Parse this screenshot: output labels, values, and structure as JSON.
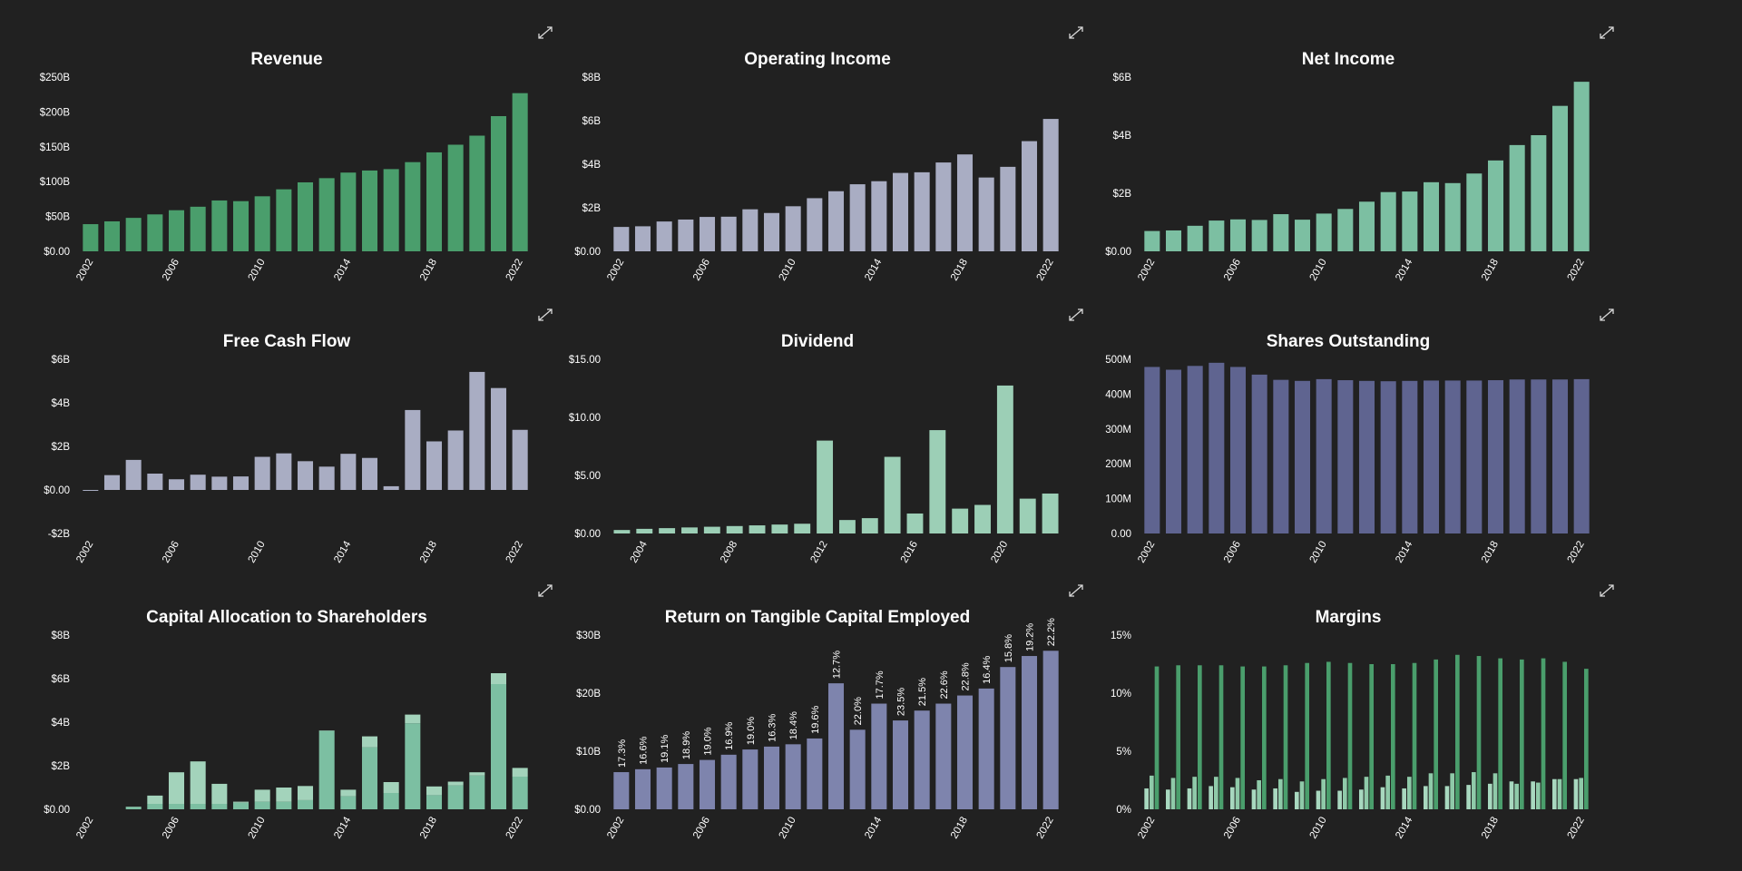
{
  "icons": {
    "expand": "expand-arrows-icon"
  },
  "colors": {
    "background": "#212121",
    "green": "#4a9e6c",
    "lavender": "#a9adc3",
    "mint": "#7cbfa2",
    "paleMint": "#9ccfb6",
    "slate": "#5f6490",
    "periwinkle": "#7e84ad",
    "capBase": "#7cbfa2",
    "capTop": "#a3d3bb",
    "marginGross": "#a8d8bf",
    "marginOp": "#8fcaa9",
    "marginNet": "#4a9e6c"
  },
  "charts": [
    {
      "id": "revenue",
      "chart_data": {
        "type": "bar",
        "title": "Revenue",
        "color": "#4a9e6c",
        "x": [
          2002,
          2003,
          2004,
          2005,
          2006,
          2007,
          2008,
          2009,
          2010,
          2011,
          2012,
          2013,
          2014,
          2015,
          2016,
          2017,
          2018,
          2019,
          2020,
          2021,
          2022
        ],
        "values": [
          39,
          43,
          48,
          53,
          59,
          64,
          73,
          72,
          79,
          89,
          99,
          105,
          113,
          116,
          118,
          128,
          142,
          153,
          166,
          194,
          227
        ],
        "unit": "B",
        "ylim": [
          0,
          250
        ],
        "yticks": [
          0,
          50,
          100,
          150,
          200,
          250
        ],
        "ytick_labels": [
          "$0.00",
          "$50B",
          "$100B",
          "$150B",
          "$200B",
          "$250B"
        ],
        "xtick_labels": [
          "2002",
          "2006",
          "2010",
          "2014",
          "2018",
          "2022"
        ]
      }
    },
    {
      "id": "operating-income",
      "chart_data": {
        "type": "bar",
        "title": "Operating Income",
        "color": "#a9adc3",
        "x": [
          2002,
          2003,
          2004,
          2005,
          2006,
          2007,
          2008,
          2009,
          2010,
          2011,
          2012,
          2013,
          2014,
          2015,
          2016,
          2017,
          2018,
          2019,
          2020,
          2021,
          2022
        ],
        "values": [
          1.12,
          1.15,
          1.37,
          1.46,
          1.58,
          1.59,
          1.93,
          1.76,
          2.07,
          2.44,
          2.76,
          3.08,
          3.22,
          3.6,
          3.63,
          4.08,
          4.45,
          3.39,
          3.88,
          5.06,
          6.08
        ],
        "unit": "B",
        "ylim": [
          0,
          8
        ],
        "yticks": [
          0,
          2,
          4,
          6,
          8
        ],
        "ytick_labels": [
          "$0.00",
          "$2B",
          "$4B",
          "$6B",
          "$8B"
        ],
        "xtick_labels": [
          "2002",
          "2006",
          "2010",
          "2014",
          "2018",
          "2022"
        ]
      }
    },
    {
      "id": "net-income",
      "chart_data": {
        "type": "bar",
        "title": "Net Income",
        "color": "#7cbfa2",
        "x": [
          2002,
          2003,
          2004,
          2005,
          2006,
          2007,
          2008,
          2009,
          2010,
          2011,
          2012,
          2013,
          2014,
          2015,
          2016,
          2017,
          2018,
          2019,
          2020,
          2021,
          2022
        ],
        "values": [
          0.7,
          0.72,
          0.88,
          1.06,
          1.1,
          1.08,
          1.28,
          1.09,
          1.3,
          1.46,
          1.71,
          2.04,
          2.06,
          2.38,
          2.35,
          2.68,
          3.13,
          3.66,
          4.0,
          5.01,
          5.84
        ],
        "unit": "B",
        "ylim": [
          0,
          6
        ],
        "yticks": [
          0,
          2,
          4,
          6
        ],
        "ytick_labels": [
          "$0.00",
          "$2B",
          "$4B",
          "$6B"
        ],
        "xtick_labels": [
          "2002",
          "2006",
          "2010",
          "2014",
          "2018",
          "2022"
        ]
      }
    },
    {
      "id": "free-cash-flow",
      "chart_data": {
        "type": "bar",
        "title": "Free Cash Flow",
        "color": "#a9adc3",
        "x": [
          2002,
          2003,
          2004,
          2005,
          2006,
          2007,
          2008,
          2009,
          2010,
          2011,
          2012,
          2013,
          2014,
          2015,
          2016,
          2017,
          2018,
          2019,
          2020,
          2021,
          2022
        ],
        "values": [
          -0.03,
          0.68,
          1.38,
          0.75,
          0.49,
          0.7,
          0.61,
          0.62,
          1.52,
          1.68,
          1.32,
          1.07,
          1.66,
          1.47,
          0.17,
          3.67,
          2.23,
          2.73,
          5.42,
          4.68,
          2.76
        ],
        "unit": "B",
        "ylim": [
          -2,
          6
        ],
        "yticks": [
          -2,
          0,
          2,
          4,
          6
        ],
        "ytick_labels": [
          "-$2B",
          "$0.00",
          "$2B",
          "$4B",
          "$6B"
        ],
        "xtick_labels": [
          "2002",
          "2006",
          "2010",
          "2014",
          "2018",
          "2022"
        ]
      }
    },
    {
      "id": "dividend",
      "chart_data": {
        "type": "bar",
        "title": "Dividend",
        "color": "#9ccfb6",
        "x": [
          2003,
          2004,
          2005,
          2006,
          2007,
          2008,
          2009,
          2010,
          2011,
          2012,
          2013,
          2014,
          2015,
          2016,
          2017,
          2018,
          2019,
          2020,
          2021,
          2022
        ],
        "values": [
          0.3,
          0.4,
          0.46,
          0.52,
          0.58,
          0.64,
          0.7,
          0.77,
          0.84,
          8.0,
          1.16,
          1.32,
          6.6,
          1.72,
          8.9,
          2.14,
          2.46,
          12.74,
          3.0,
          3.44
        ],
        "ylim": [
          0,
          15
        ],
        "yticks": [
          0,
          5,
          10,
          15
        ],
        "ytick_labels": [
          "$0.00",
          "$5.00",
          "$10.00",
          "$15.00"
        ],
        "xtick_labels": [
          "2004",
          "2008",
          "2012",
          "2016",
          "2020"
        ]
      }
    },
    {
      "id": "shares-outstanding",
      "chart_data": {
        "type": "bar",
        "title": "Shares Outstanding",
        "color": "#5f6490",
        "x": [
          2002,
          2003,
          2004,
          2005,
          2006,
          2007,
          2008,
          2009,
          2010,
          2011,
          2012,
          2013,
          2014,
          2015,
          2016,
          2017,
          2018,
          2019,
          2020,
          2021,
          2022
        ],
        "values": [
          478,
          470,
          481,
          490,
          478,
          456,
          441,
          438,
          443,
          440,
          438,
          437,
          438,
          439,
          439,
          439,
          440,
          442,
          442,
          442,
          443
        ],
        "unit": "M",
        "ylim": [
          0,
          500
        ],
        "yticks": [
          0,
          100,
          200,
          300,
          400,
          500
        ],
        "ytick_labels": [
          "0.00",
          "100M",
          "200M",
          "300M",
          "400M",
          "500M"
        ],
        "xtick_labels": [
          "2002",
          "2006",
          "2010",
          "2014",
          "2018",
          "2022"
        ]
      }
    },
    {
      "id": "capital-allocation",
      "chart_data": {
        "type": "stacked_bar",
        "title": "Capital Allocation to Shareholders",
        "x": [
          2002,
          2003,
          2004,
          2005,
          2006,
          2007,
          2008,
          2009,
          2010,
          2011,
          2012,
          2013,
          2014,
          2015,
          2016,
          2017,
          2018,
          2019,
          2020,
          2021,
          2022
        ],
        "series": [
          {
            "color": "#7cbfa2",
            "values": [
              0,
              0,
              0.1,
              0.25,
              0.25,
              0.25,
              0.25,
              0.3,
              0.35,
              0.35,
              0.42,
              3.6,
              0.6,
              2.85,
              0.75,
              3.95,
              0.65,
              1.1,
              1.55,
              5.75,
              1.5
            ]
          },
          {
            "color": "#a3d3bb",
            "values": [
              0,
              0,
              0.02,
              0.38,
              1.45,
              1.95,
              0.92,
              0.05,
              0.55,
              0.65,
              0.65,
              0.02,
              0.3,
              0.5,
              0.5,
              0.4,
              0.4,
              0.17,
              0.15,
              0.5,
              0.4
            ]
          }
        ],
        "unit": "B",
        "ylim": [
          0,
          8
        ],
        "yticks": [
          0,
          2,
          4,
          6,
          8
        ],
        "ytick_labels": [
          "$0.00",
          "$2B",
          "$4B",
          "$6B",
          "$8B"
        ],
        "xtick_labels": [
          "2002",
          "2006",
          "2010",
          "2014",
          "2018",
          "2022"
        ]
      }
    },
    {
      "id": "rotce",
      "chart_data": {
        "type": "bar",
        "title": "Return on Tangible Capital Employed",
        "color": "#7e84ad",
        "x": [
          2002,
          2003,
          2004,
          2005,
          2006,
          2007,
          2008,
          2009,
          2010,
          2011,
          2012,
          2013,
          2014,
          2015,
          2016,
          2017,
          2018,
          2019,
          2020,
          2021,
          2022
        ],
        "values": [
          6.4,
          6.9,
          7.2,
          7.8,
          8.5,
          9.4,
          10.3,
          10.8,
          11.2,
          12.2,
          21.7,
          13.7,
          18.2,
          15.3,
          17.0,
          18.2,
          19.6,
          20.8,
          24.5,
          26.4,
          27.3
        ],
        "data_labels": [
          "17.3%",
          "16.6%",
          "19.1%",
          "18.9%",
          "19.0%",
          "16.9%",
          "19.0%",
          "16.3%",
          "18.4%",
          "19.6%",
          "12.7%",
          "22.0%",
          "17.7%",
          "23.5%",
          "21.5%",
          "22.6%",
          "22.8%",
          "16.4%",
          "15.8%",
          "19.2%",
          "22.2%"
        ],
        "unit": "B",
        "ylim": [
          0,
          30
        ],
        "yticks": [
          0,
          10,
          20,
          30
        ],
        "ytick_labels": [
          "$0.00",
          "$10B",
          "$20B",
          "$30B"
        ],
        "xtick_labels": [
          "2002",
          "2006",
          "2010",
          "2014",
          "2018",
          "2022"
        ]
      }
    },
    {
      "id": "margins",
      "chart_data": {
        "type": "grouped_bar",
        "title": "Margins",
        "x": [
          2002,
          2003,
          2004,
          2005,
          2006,
          2007,
          2008,
          2009,
          2010,
          2011,
          2012,
          2013,
          2014,
          2015,
          2016,
          2017,
          2018,
          2019,
          2020,
          2021,
          2022
        ],
        "series": [
          {
            "color": "#a8d8bf",
            "values": [
              1.8,
              1.7,
              1.8,
              2.0,
              1.9,
              1.7,
              1.8,
              1.5,
              1.6,
              1.6,
              1.7,
              1.9,
              1.8,
              2.0,
              2.0,
              2.1,
              2.2,
              2.4,
              2.4,
              2.6,
              2.6
            ]
          },
          {
            "color": "#8fcaa9",
            "values": [
              2.9,
              2.7,
              2.8,
              2.8,
              2.7,
              2.5,
              2.6,
              2.4,
              2.6,
              2.7,
              2.8,
              2.9,
              2.8,
              3.1,
              3.1,
              3.2,
              3.1,
              2.2,
              2.3,
              2.6,
              2.7
            ]
          },
          {
            "color": "#4a9e6c",
            "values": [
              12.3,
              12.4,
              12.4,
              12.4,
              12.3,
              12.3,
              12.4,
              12.6,
              12.7,
              12.6,
              12.5,
              12.5,
              12.6,
              12.9,
              13.3,
              13.2,
              13.0,
              12.9,
              13.0,
              12.7,
              12.1
            ]
          }
        ],
        "ylim": [
          0,
          15
        ],
        "yticks": [
          0,
          5,
          10,
          15
        ],
        "ytick_labels": [
          "0%",
          "5%",
          "10%",
          "15%"
        ],
        "xtick_labels": [
          "2002",
          "2006",
          "2010",
          "2014",
          "2018",
          "2022"
        ]
      }
    }
  ]
}
